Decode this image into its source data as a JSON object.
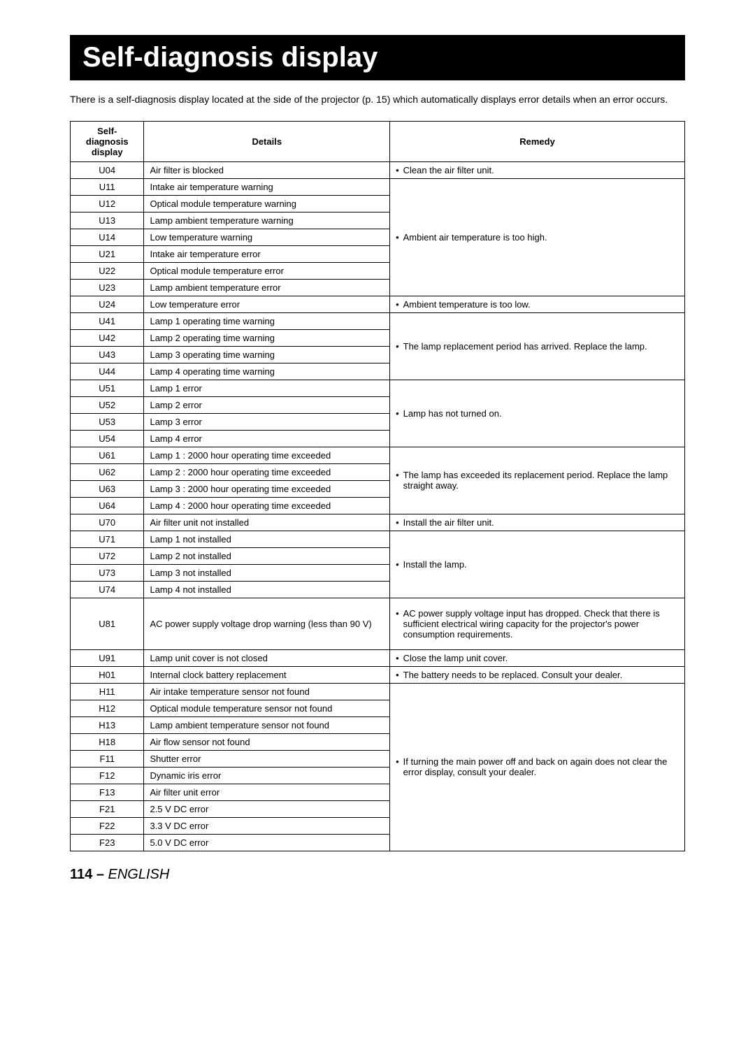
{
  "title": "Self-diagnosis display",
  "intro": "There is a self-diagnosis display located at the side of the projector (p. 15) which automatically displays error details when an error occurs.",
  "headers": {
    "code": "Self-diagnosis display",
    "details": "Details",
    "remedy": "Remedy"
  },
  "groups": [
    {
      "remedy": "Clean the air filter unit.",
      "rows": [
        {
          "code": "U04",
          "detail": "Air filter is blocked"
        }
      ]
    },
    {
      "remedy": "Ambient air temperature is too high.",
      "rows": [
        {
          "code": "U11",
          "detail": "Intake air temperature warning"
        },
        {
          "code": "U12",
          "detail": "Optical module temperature warning"
        },
        {
          "code": "U13",
          "detail": "Lamp ambient temperature warning"
        },
        {
          "code": "U14",
          "detail": "Low temperature warning"
        },
        {
          "code": "U21",
          "detail": "Intake air temperature error"
        },
        {
          "code": "U22",
          "detail": "Optical module temperature error"
        },
        {
          "code": "U23",
          "detail": "Lamp ambient temperature error"
        }
      ]
    },
    {
      "remedy": "Ambient temperature is too low.",
      "rows": [
        {
          "code": "U24",
          "detail": "Low temperature error"
        }
      ]
    },
    {
      "remedy": "The lamp replacement period has arrived. Replace the lamp.",
      "rows": [
        {
          "code": "U41",
          "detail": "Lamp 1 operating time warning"
        },
        {
          "code": "U42",
          "detail": "Lamp 2 operating time warning"
        },
        {
          "code": "U43",
          "detail": "Lamp 3 operating time warning"
        },
        {
          "code": "U44",
          "detail": "Lamp 4 operating time warning"
        }
      ]
    },
    {
      "remedy": "Lamp has not turned on.",
      "rows": [
        {
          "code": "U51",
          "detail": "Lamp 1 error"
        },
        {
          "code": "U52",
          "detail": "Lamp 2 error"
        },
        {
          "code": "U53",
          "detail": "Lamp 3 error"
        },
        {
          "code": "U54",
          "detail": "Lamp 4 error"
        }
      ]
    },
    {
      "remedy": "The lamp has exceeded its replacement period. Replace the lamp straight away.",
      "rows": [
        {
          "code": "U61",
          "detail": "Lamp 1 : 2000 hour operating time exceeded"
        },
        {
          "code": "U62",
          "detail": "Lamp 2 : 2000 hour operating time exceeded"
        },
        {
          "code": "U63",
          "detail": "Lamp 3 : 2000 hour operating time exceeded"
        },
        {
          "code": "U64",
          "detail": "Lamp 4 : 2000 hour operating time exceeded"
        }
      ]
    },
    {
      "remedy": "Install the air filter unit.",
      "rows": [
        {
          "code": "U70",
          "detail": "Air filter unit not installed"
        }
      ]
    },
    {
      "remedy": "Install the lamp.",
      "rows": [
        {
          "code": "U71",
          "detail": "Lamp 1 not installed"
        },
        {
          "code": "U72",
          "detail": "Lamp 2 not installed"
        },
        {
          "code": "U73",
          "detail": "Lamp 3 not installed"
        },
        {
          "code": "U74",
          "detail": "Lamp 4 not installed"
        }
      ]
    },
    {
      "remedy": "AC power supply voltage input has dropped. Check that there is sufficient electrical wiring capacity for the projector's power consumption requirements.",
      "tall": true,
      "rows": [
        {
          "code": "U81",
          "detail": "AC power supply voltage drop warning (less than 90 V)"
        }
      ]
    },
    {
      "remedy": "Close the lamp unit cover.",
      "rows": [
        {
          "code": "U91",
          "detail": "Lamp unit cover is not closed"
        }
      ]
    },
    {
      "remedy": "The battery needs to be replaced. Consult your dealer.",
      "rows": [
        {
          "code": "H01",
          "detail": "Internal clock battery replacement"
        }
      ]
    },
    {
      "remedy": "If turning the main power off and back on again does not clear the error display, consult your dealer.",
      "rows": [
        {
          "code": "H11",
          "detail": "Air intake temperature sensor not found"
        },
        {
          "code": "H12",
          "detail": "Optical module temperature sensor not found"
        },
        {
          "code": "H13",
          "detail": "Lamp ambient temperature sensor not found"
        },
        {
          "code": "H18",
          "detail": "Air flow sensor not found"
        },
        {
          "code": "F11",
          "detail": "Shutter error"
        },
        {
          "code": "F12",
          "detail": "Dynamic iris error"
        },
        {
          "code": "F13",
          "detail": "Air filter unit error"
        },
        {
          "code": "F21",
          "detail": "2.5 V DC error"
        },
        {
          "code": "F22",
          "detail": "3.3 V DC error"
        },
        {
          "code": "F23",
          "detail": "5.0 V DC error"
        }
      ]
    }
  ],
  "footer": {
    "page": "114",
    "separator": " – ",
    "lang": "ENGLISH"
  }
}
